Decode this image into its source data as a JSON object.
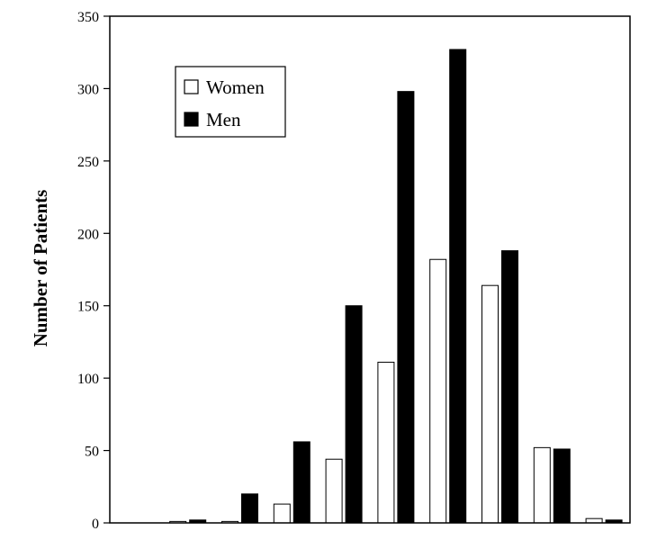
{
  "chart_data": {
    "type": "bar",
    "title": "",
    "xlabel": "",
    "ylabel": "Number of Patients",
    "ylim": [
      0,
      350
    ],
    "yticks": [
      0,
      50,
      100,
      150,
      200,
      250,
      300,
      350
    ],
    "grid": false,
    "legend_position": "top-left",
    "categories": [
      "",
      "",
      "",
      "",
      "",
      "",
      "",
      "",
      "",
      ""
    ],
    "series": [
      {
        "name": "Women",
        "fill": "#ffffff",
        "stroke": "#000000",
        "values": [
          0,
          1,
          1,
          13,
          44,
          111,
          182,
          164,
          52,
          3
        ]
      },
      {
        "name": "Men",
        "fill": "#000000",
        "stroke": "#000000",
        "values": [
          0,
          2,
          20,
          56,
          150,
          298,
          327,
          188,
          51,
          2
        ]
      }
    ]
  }
}
